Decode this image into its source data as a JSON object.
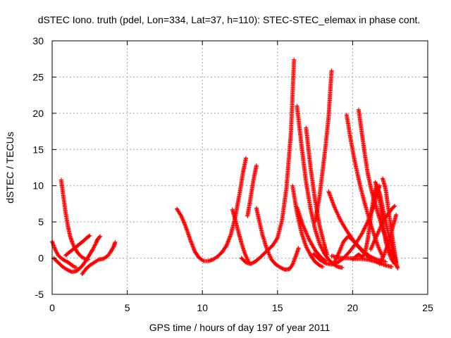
{
  "chart_data": {
    "type": "scatter",
    "title": "dSTEC Iono. truth (pdel, Lon=334, Lat=37, h=110): STEC-STEC_elemax in phase cont.",
    "xlabel": "GPS time / hours of day 197 of year 2011",
    "ylabel": "dSTEC  / TECUs",
    "xlim": [
      0,
      25
    ],
    "ylim": [
      -5,
      30
    ],
    "xticks": [
      0,
      5,
      10,
      15,
      20,
      25
    ],
    "yticks": [
      -5,
      0,
      5,
      10,
      15,
      20,
      25,
      30
    ],
    "xtick_labels": [
      "0",
      "5",
      "10",
      "15",
      "20",
      "25"
    ],
    "ytick_labels": [
      "-5",
      "0",
      "5",
      "10",
      "15",
      "20",
      "25",
      "30"
    ],
    "grid": true,
    "marker": "plus",
    "color": "#ff0000",
    "series": [
      {
        "x": [
          0.0,
          0.2,
          0.4,
          0.6,
          0.8,
          1.0,
          1.2,
          1.4,
          1.6
        ],
        "y": [
          2.3,
          1.2,
          0.4,
          0.0,
          -0.3,
          -0.5,
          -0.8,
          -1.1,
          -1.3
        ]
      },
      {
        "x": [
          0.1,
          0.4,
          0.7,
          1.0,
          1.3,
          1.6,
          1.9,
          2.1,
          2.3,
          2.5,
          2.7,
          2.9,
          3.0,
          3.1,
          3.2
        ],
        "y": [
          0.0,
          -0.6,
          -1.2,
          -1.6,
          -1.9,
          -1.8,
          -1.3,
          -0.8,
          -0.2,
          0.5,
          1.2,
          2.0,
          2.5,
          2.8,
          3.0
        ]
      },
      {
        "x": [
          0.6,
          0.75,
          0.9,
          1.05,
          1.2,
          1.35,
          1.5,
          1.65,
          1.8,
          2.0,
          2.2,
          2.4
        ],
        "y": [
          10.8,
          8.5,
          6.2,
          4.4,
          3.0,
          2.1,
          1.4,
          0.9,
          0.5,
          0.1,
          -0.1,
          -0.2
        ]
      },
      {
        "x": [
          0.9,
          1.2,
          1.5,
          1.8,
          2.1,
          2.3,
          2.5
        ],
        "y": [
          0.4,
          0.9,
          1.4,
          1.9,
          2.4,
          2.8,
          3.1
        ]
      },
      {
        "x": [
          2.0,
          2.2,
          2.5,
          2.8,
          3.1,
          3.4,
          3.7,
          3.9,
          4.1,
          4.2
        ],
        "y": [
          -2.2,
          -1.6,
          -1.0,
          -0.6,
          -0.2,
          -0.1,
          0.3,
          0.9,
          1.6,
          2.2
        ]
      },
      {
        "x": [
          8.3,
          8.6,
          8.9,
          9.2,
          9.5,
          9.8,
          10.1,
          10.4,
          10.7,
          11.0,
          11.3,
          11.6,
          11.9,
          12.2,
          12.5,
          12.7,
          12.9
        ],
        "y": [
          6.8,
          5.8,
          4.3,
          2.5,
          0.9,
          0.0,
          -0.4,
          -0.4,
          -0.2,
          0.2,
          0.8,
          1.7,
          3.3,
          5.8,
          9.2,
          11.8,
          13.8
        ]
      },
      {
        "x": [
          12.0,
          12.2,
          12.4,
          12.6,
          12.8,
          13.0,
          13.1
        ],
        "y": [
          6.7,
          5.2,
          3.6,
          2.1,
          0.8,
          -0.2,
          -0.6
        ]
      },
      {
        "x": [
          12.6,
          12.9,
          13.2,
          13.5,
          13.8,
          14.1,
          14.4,
          14.7,
          15.0,
          15.3,
          15.6,
          15.9,
          16.1
        ],
        "y": [
          0.0,
          -0.6,
          -0.8,
          -0.5,
          0.0,
          0.6,
          1.2,
          1.8,
          2.8,
          5.2,
          9.8,
          17.5,
          27.4
        ]
      },
      {
        "x": [
          13.6,
          13.8,
          14.0,
          14.3,
          14.6,
          14.9,
          15.2,
          15.5,
          15.8,
          16.0,
          16.2,
          16.4
        ],
        "y": [
          6.9,
          5.0,
          3.2,
          1.2,
          -0.2,
          -0.9,
          -1.3,
          -1.6,
          -1.5,
          -0.9,
          0.2,
          1.4
        ]
      },
      {
        "x": [
          13.0,
          13.2,
          13.4,
          13.6
        ],
        "y": [
          5.8,
          8.2,
          10.8,
          12.8
        ]
      },
      {
        "x": [
          16.3,
          16.6,
          16.9,
          17.2,
          17.5,
          17.8,
          18.1,
          18.4,
          18.7,
          19.0,
          19.3
        ],
        "y": [
          21.0,
          15.5,
          10.5,
          6.8,
          4.0,
          2.0,
          0.7,
          -0.2,
          -0.8,
          -1.2,
          -1.3
        ]
      },
      {
        "x": [
          16.9,
          17.2,
          17.5,
          17.8,
          18.1,
          18.3
        ],
        "y": [
          18.0,
          12.5,
          8.0,
          4.5,
          2.0,
          0.5
        ]
      },
      {
        "x": [
          16.0,
          16.3,
          16.6,
          16.9,
          17.2,
          17.5,
          17.8,
          18.0
        ],
        "y": [
          10.0,
          6.2,
          3.5,
          1.6,
          0.4,
          -0.5,
          -1.0,
          -1.2
        ]
      },
      {
        "x": [
          16.3,
          16.7,
          17.1,
          17.5,
          17.9,
          18.2
        ],
        "y": [
          7.0,
          4.5,
          2.6,
          1.1,
          0.1,
          -0.4
        ]
      },
      {
        "x": [
          17.4,
          17.8,
          18.2,
          18.6,
          19.0,
          19.4,
          19.8,
          20.2,
          20.6,
          21.0,
          21.4,
          21.6,
          21.8
        ],
        "y": [
          0.6,
          -0.2,
          -0.7,
          -0.9,
          -0.6,
          0.0,
          0.9,
          2.0,
          3.3,
          5.0,
          7.2,
          8.6,
          10.0
        ]
      },
      {
        "x": [
          17.5,
          17.8,
          18.0,
          18.2,
          18.4,
          18.6
        ],
        "y": [
          5.0,
          8.5,
          12.0,
          15.5,
          19.5,
          25.9
        ]
      },
      {
        "x": [
          18.4,
          18.8,
          19.2,
          19.6,
          20.0,
          20.4,
          20.8,
          21.2,
          21.6,
          22.0,
          22.2
        ],
        "y": [
          9.2,
          7.0,
          5.2,
          3.8,
          2.6,
          1.6,
          0.8,
          0.2,
          -0.2,
          -0.4,
          -0.5
        ]
      },
      {
        "x": [
          18.8,
          19.1,
          19.4,
          19.7,
          20.0,
          20.4,
          20.8,
          21.2
        ],
        "y": [
          -0.5,
          0.8,
          2.3,
          3.0,
          2.5,
          1.5,
          0.6,
          -0.1
        ]
      },
      {
        "x": [
          18.6,
          19.0,
          19.4,
          19.8,
          20.2,
          20.6,
          21.0,
          21.4,
          21.8,
          22.2,
          22.6
        ],
        "y": [
          0.3,
          0.1,
          0.0,
          0.0,
          -0.1,
          -0.1,
          -0.2,
          -0.4,
          -0.7,
          -1.0,
          -1.2
        ]
      },
      {
        "x": [
          19.6,
          19.9,
          20.2,
          20.5,
          20.8,
          21.1,
          21.4,
          21.7,
          22.0
        ],
        "y": [
          19.8,
          16.0,
          12.8,
          10.0,
          7.6,
          5.4,
          3.4,
          1.6,
          0.2
        ]
      },
      {
        "x": [
          20.0,
          20.2,
          20.4,
          20.6,
          20.8,
          21.0,
          21.2,
          21.4,
          21.6,
          21.8,
          22.0,
          22.2,
          22.4,
          22.6,
          22.8
        ],
        "y": [
          -0.2,
          0.2,
          0.5,
          0.2,
          0.5,
          2.5,
          5.5,
          8.5,
          10.2,
          8.0,
          5.0,
          2.3,
          0.8,
          -0.2,
          -0.8
        ]
      },
      {
        "x": [
          20.4,
          20.6,
          20.8,
          21.0,
          21.2,
          21.4,
          21.6,
          21.8,
          22.0,
          22.2,
          22.4,
          22.6,
          22.8
        ],
        "y": [
          20.5,
          17.5,
          14.5,
          11.8,
          9.8,
          8.2,
          6.8,
          5.4,
          4.0,
          2.8,
          1.6,
          0.4,
          -0.7
        ]
      },
      {
        "x": [
          21.2,
          21.5,
          21.8,
          22.1,
          22.4,
          22.6,
          22.8
        ],
        "y": [
          1.2,
          2.6,
          4.0,
          5.4,
          6.2,
          6.8,
          7.2
        ]
      },
      {
        "x": [
          21.5,
          21.8,
          22.0,
          22.2,
          22.4,
          22.6,
          22.8,
          22.9,
          23.0
        ],
        "y": [
          10.5,
          9.0,
          7.0,
          5.0,
          3.2,
          1.6,
          0.2,
          -0.8,
          -1.4
        ]
      },
      {
        "x": [
          22.0,
          22.2,
          22.4,
          22.6,
          22.8,
          22.9
        ],
        "y": [
          11.0,
          9.5,
          6.5,
          3.5,
          0.8,
          -0.6
        ]
      },
      {
        "x": [
          21.8,
          22.1,
          22.4,
          22.7,
          22.9
        ],
        "y": [
          -0.8,
          0.5,
          2.2,
          4.5,
          6.0
        ]
      }
    ]
  }
}
